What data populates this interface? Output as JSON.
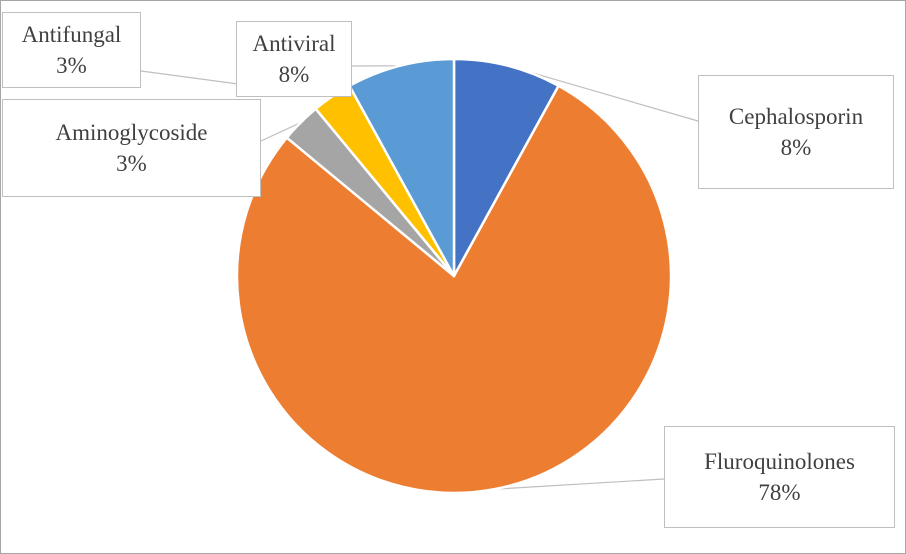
{
  "chart_data": {
    "type": "pie",
    "title": "",
    "slices": [
      {
        "label": "Cephalosporin",
        "value": 8,
        "display": "8%",
        "color": "#4472C4"
      },
      {
        "label": "Fluroquinolones",
        "value": 78,
        "display": "78%",
        "color": "#ED7D31"
      },
      {
        "label": "Aminoglycoside",
        "value": 3,
        "display": "3%",
        "color": "#A5A5A5"
      },
      {
        "label": "Antifungal",
        "value": 3,
        "display": "3%",
        "color": "#FFC000"
      },
      {
        "label": "Antiviral",
        "value": 8,
        "display": "8%",
        "color": "#5B9BD5"
      }
    ],
    "legend": "none",
    "data_labels": "callouts with leader lines"
  }
}
